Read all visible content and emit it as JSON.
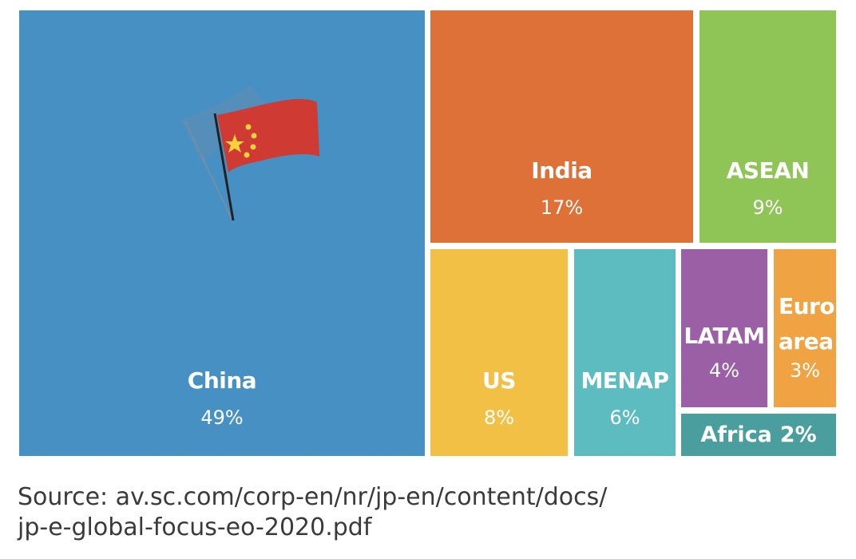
{
  "chart_data": {
    "type": "treemap",
    "items": [
      {
        "name": "China",
        "value": 49,
        "label": "49%",
        "color": "#4690C3"
      },
      {
        "name": "India",
        "value": 17,
        "label": "17%",
        "color": "#DE7137"
      },
      {
        "name": "ASEAN",
        "value": 9,
        "label": "9%",
        "color": "#8FC556"
      },
      {
        "name": "US",
        "value": 8,
        "label": "8%",
        "color": "#F3C046"
      },
      {
        "name": "MENAP",
        "value": 6,
        "label": "6%",
        "color": "#5CBCC0"
      },
      {
        "name": "LATAM",
        "value": 4,
        "label": "4%",
        "color": "#9B5FA6"
      },
      {
        "name": "Euro area",
        "value": 3,
        "label": "3%",
        "color": "#F0A342"
      },
      {
        "name": "Africa",
        "value": 2,
        "label": "2%",
        "color": "#4A9E9E"
      }
    ]
  },
  "source": {
    "line1": "Source: av.sc.com/corp-en/nr/jp-en/content/docs/",
    "line2": "jp-e-global-focus-eo-2020.pdf"
  },
  "icons": {
    "flag": "china-flag-icon"
  }
}
